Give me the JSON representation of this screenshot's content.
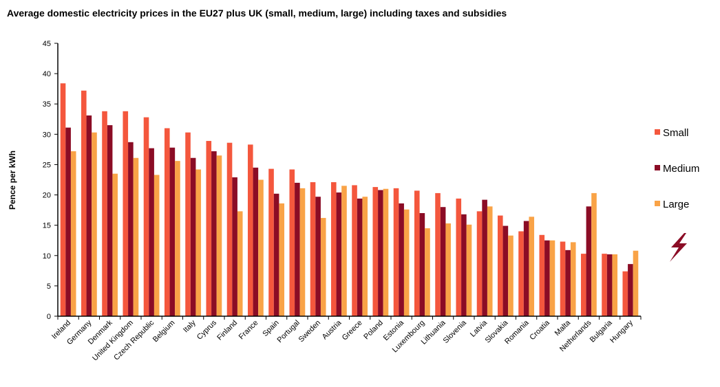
{
  "chart_data": {
    "type": "bar",
    "title": "Average domestic electricity prices in the EU27 plus UK (small, medium, large) including taxes and subsidies",
    "ylabel": "Pence per kWh",
    "xlabel": "",
    "ylim": [
      0,
      45
    ],
    "yticks": [
      0,
      5,
      10,
      15,
      20,
      25,
      30,
      35,
      40,
      45
    ],
    "grid": false,
    "legend_position": "right",
    "categories": [
      "Ireland",
      "Germany",
      "Denmark",
      "United Kingdom",
      "Czech Republic",
      "Belgium",
      "Italy",
      "Cyprus",
      "Finland",
      "France",
      "Spain",
      "Portugal",
      "Sweden",
      "Austria",
      "Greece",
      "Poland",
      "Estonia",
      "Luxembourg",
      "Lithuania",
      "Slovenia",
      "Latvia",
      "Slovakia",
      "Romania",
      "Croatia",
      "Malta",
      "Netherlands",
      "Bulgaria",
      "Hungary"
    ],
    "series": [
      {
        "name": "Small",
        "color": "#f4573d",
        "values": [
          38.4,
          37.2,
          33.8,
          33.8,
          32.8,
          31.0,
          30.3,
          28.9,
          28.6,
          28.3,
          24.3,
          24.2,
          22.1,
          22.1,
          21.6,
          21.3,
          21.1,
          20.7,
          20.3,
          19.4,
          17.3,
          16.6,
          14.0,
          13.4,
          12.3,
          10.3,
          10.3,
          7.4
        ]
      },
      {
        "name": "Medium",
        "color": "#8b0c25",
        "values": [
          31.1,
          33.1,
          31.5,
          28.7,
          27.7,
          27.8,
          26.1,
          27.2,
          22.9,
          24.5,
          20.2,
          22.0,
          19.7,
          20.4,
          19.4,
          20.8,
          18.6,
          17.0,
          18.0,
          16.8,
          19.2,
          14.9,
          15.7,
          12.5,
          10.9,
          18.1,
          10.2,
          8.6
        ]
      },
      {
        "name": "Large",
        "color": "#f9a347",
        "values": [
          27.2,
          30.3,
          23.5,
          26.1,
          23.3,
          25.6,
          24.2,
          26.5,
          17.3,
          22.5,
          18.6,
          21.1,
          16.2,
          21.5,
          19.7,
          21.0,
          17.6,
          14.5,
          15.3,
          15.1,
          18.1,
          13.3,
          16.4,
          12.5,
          12.2,
          20.3,
          10.2,
          10.8
        ]
      }
    ]
  },
  "legend_icon": "lightning-bolt-icon",
  "legend_icon_color": "#8b0c25"
}
